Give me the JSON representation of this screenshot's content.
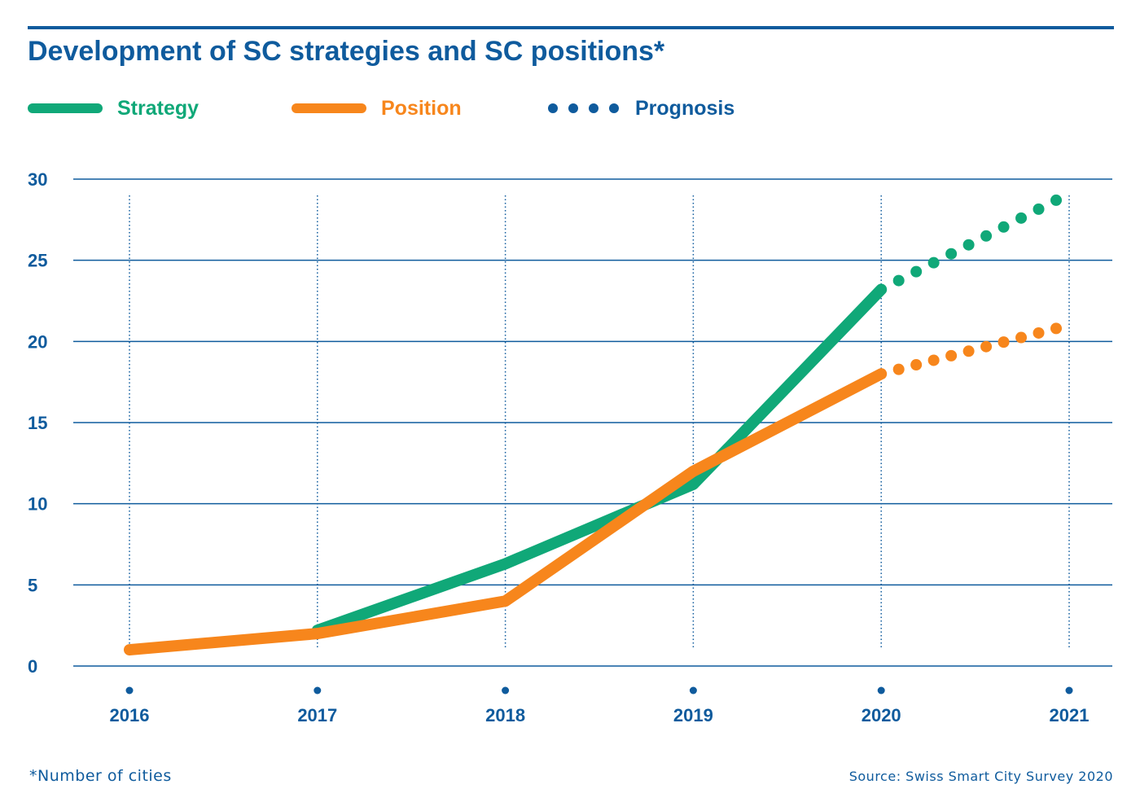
{
  "title": "Development of SC strategies and SC positions*",
  "legend": {
    "strategy": "Strategy",
    "position": "Position",
    "prognosis": "Prognosis"
  },
  "colors": {
    "strategy": "#10a878",
    "position": "#f7861c",
    "prognosis": "#0f5b9d",
    "axis": "#0f5b9d"
  },
  "footnote": "*Number of cities",
  "source": "Source: Swiss Smart City Survey 2020",
  "chart_data": {
    "type": "line",
    "title": "Development of SC strategies and SC positions*",
    "xlabel": "",
    "ylabel": "",
    "x": [
      "2016",
      "2017",
      "2018",
      "2019",
      "2020",
      "2021"
    ],
    "ylim": [
      0,
      30
    ],
    "yticks": [
      0,
      5,
      10,
      15,
      20,
      25,
      30
    ],
    "grid": "horizontal",
    "legend_placement": "top-left",
    "series": [
      {
        "name": "Strategy",
        "values": [
          null,
          2.2,
          6.3,
          11.2,
          23.2,
          null
        ],
        "color": "#10a878",
        "style": "solid"
      },
      {
        "name": "Position",
        "values": [
          1,
          2,
          4,
          12,
          18,
          null
        ],
        "color": "#f7861c",
        "style": "solid"
      },
      {
        "name": "Prognosis",
        "values": [
          null,
          null,
          null,
          null,
          23.2,
          28.7
        ],
        "color": "#10a878",
        "style": "dotted",
        "of": "Strategy"
      },
      {
        "name": "Prognosis",
        "values": [
          null,
          null,
          null,
          null,
          18,
          20.8
        ],
        "color": "#f7861c",
        "style": "dotted",
        "of": "Position"
      }
    ]
  }
}
